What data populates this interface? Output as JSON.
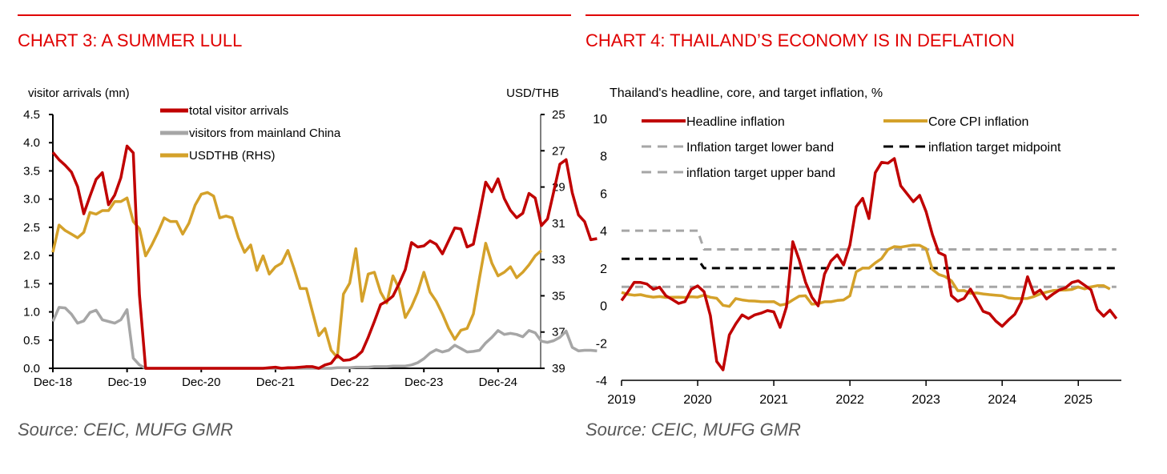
{
  "chart_data": [
    {
      "id": "chart3",
      "type": "line",
      "title": "CHART 3: A SUMMER LULL",
      "source": "Source: CEIC, MUFG GMR",
      "ylabel": "visitor arrivals (mn)",
      "y2label": "USD/THB",
      "ylim": [
        0,
        4.5
      ],
      "y2lim": [
        25,
        39
      ],
      "y2_inverted": true,
      "yticks": [
        "0.0",
        "0.5",
        "1.0",
        "1.5",
        "2.0",
        "2.5",
        "3.0",
        "3.5",
        "4.0",
        "4.5"
      ],
      "y2ticks": [
        "25",
        "27",
        "29",
        "31",
        "33",
        "35",
        "37",
        "39"
      ],
      "xticks": [
        "Dec-18",
        "Dec-19",
        "Dec-20",
        "Dec-21",
        "Dec-22",
        "Dec-23",
        "Dec-24"
      ],
      "x_start": "Dec-18",
      "x_unit": "month",
      "legend": [
        {
          "name": "total visitor arrivals",
          "color": "#c00000",
          "style": "solid"
        },
        {
          "name": "visitors from mainland China",
          "color": "#a6a6a6",
          "style": "solid"
        },
        {
          "name": "USDTHB (RHS)",
          "color": "#d4a12a",
          "style": "solid"
        }
      ],
      "series": [
        {
          "name": "total visitor arrivals",
          "axis": "left",
          "color": "#c00000",
          "values": [
            3.83,
            3.7,
            3.6,
            3.48,
            3.22,
            2.74,
            3.05,
            3.35,
            3.47,
            2.9,
            3.07,
            3.38,
            3.94,
            3.82,
            1.3,
            0.0,
            0.0,
            0.0,
            0.0,
            0.0,
            0.0,
            0.0,
            0.0,
            0.0,
            0.0,
            0.0,
            0.0,
            0.0,
            0.0,
            0.0,
            0.0,
            0.0,
            0.0,
            0.0,
            0.0,
            0.01,
            0.02,
            0.0,
            0.01,
            0.01,
            0.02,
            0.03,
            0.03,
            0.0,
            0.06,
            0.09,
            0.23,
            0.14,
            0.15,
            0.2,
            0.3,
            0.55,
            0.83,
            1.13,
            1.19,
            1.28,
            1.5,
            1.75,
            2.23,
            2.15,
            2.17,
            2.26,
            2.2,
            2.03,
            2.26,
            2.49,
            2.47,
            2.15,
            2.2,
            2.74,
            3.3,
            3.13,
            3.36,
            3.01,
            2.8,
            2.67,
            2.75,
            3.1,
            3.02,
            2.53,
            2.65,
            3.13,
            3.62,
            3.7,
            3.11,
            2.72,
            2.6,
            2.28,
            2.3
          ]
        },
        {
          "name": "visitors from mainland China",
          "axis": "left",
          "color": "#a6a6a6",
          "values": [
            0.83,
            1.08,
            1.07,
            0.96,
            0.8,
            0.84,
            0.99,
            1.03,
            0.86,
            0.83,
            0.8,
            0.86,
            1.04,
            0.18,
            0.06,
            0.0,
            0.0,
            0.0,
            0.0,
            0.0,
            0.0,
            0.0,
            0.0,
            0.0,
            0.0,
            0.0,
            0.0,
            0.0,
            0.0,
            0.0,
            0.0,
            0.0,
            0.0,
            0.0,
            0.0,
            0.0,
            0.0,
            0.0,
            0.0,
            0.0,
            0.0,
            0.0,
            0.0,
            0.0,
            0.0,
            0.0,
            0.01,
            0.01,
            0.01,
            0.02,
            0.02,
            0.02,
            0.03,
            0.03,
            0.03,
            0.04,
            0.04,
            0.04,
            0.06,
            0.1,
            0.17,
            0.27,
            0.33,
            0.29,
            0.32,
            0.41,
            0.35,
            0.29,
            0.3,
            0.32,
            0.45,
            0.55,
            0.67,
            0.6,
            0.62,
            0.6,
            0.56,
            0.67,
            0.63,
            0.48,
            0.46,
            0.49,
            0.55,
            0.66,
            0.37,
            0.31,
            0.32,
            0.32,
            0.31
          ]
        },
        {
          "name": "USDTHB (RHS)",
          "axis": "right",
          "color": "#d4a12a",
          "values": [
            32.6,
            31.1,
            31.4,
            31.6,
            31.8,
            31.5,
            30.4,
            30.5,
            30.3,
            30.3,
            29.8,
            29.8,
            29.6,
            30.9,
            31.3,
            32.8,
            32.2,
            31.5,
            30.7,
            30.9,
            30.9,
            31.6,
            31.0,
            30.0,
            29.4,
            29.3,
            29.5,
            30.7,
            30.6,
            30.7,
            31.8,
            32.6,
            32.2,
            33.6,
            32.8,
            33.8,
            33.4,
            33.2,
            32.5,
            33.5,
            34.6,
            34.6,
            35.9,
            37.2,
            36.8,
            38.0,
            38.4,
            34.9,
            34.3,
            32.4,
            35.3,
            33.8,
            33.7,
            34.8,
            35.4,
            33.9,
            34.6,
            36.2,
            35.6,
            34.8,
            33.7,
            34.8,
            35.3,
            36.0,
            36.8,
            37.4,
            36.9,
            36.8,
            36.0,
            34.0,
            32.1,
            33.2,
            33.9,
            33.7,
            33.4,
            34.0,
            33.7,
            33.3,
            32.8,
            32.5
          ]
        }
      ]
    },
    {
      "id": "chart4",
      "type": "line",
      "title": "CHART 4: THAILAND’S ECONOMY IS IN DEFLATION",
      "source": "Source: CEIC, MUFG GMR",
      "ylabel": "Thailand's headline, core, and target inflation, %",
      "ylim": [
        -4,
        10
      ],
      "yticks": [
        "10",
        "8",
        "6",
        "4",
        "2",
        "0",
        "-2",
        "-4"
      ],
      "xticks": [
        "2019",
        "2020",
        "2021",
        "2022",
        "2023",
        "2024",
        "2025"
      ],
      "x_start": "Jan-2019",
      "x_unit": "month",
      "legend": [
        {
          "name": "Headline inflation",
          "color": "#c00000",
          "style": "solid"
        },
        {
          "name": "Core CPI inflation",
          "color": "#d4a12a",
          "style": "solid"
        },
        {
          "name": "Inflation target lower band",
          "color": "#a6a6a6",
          "style": "dashed"
        },
        {
          "name": "inflation target midpoint",
          "color": "#000000",
          "style": "dashed"
        },
        {
          "name": "inflation target upper band",
          "color": "#a6a6a6",
          "style": "dashed"
        }
      ],
      "series": [
        {
          "name": "Headline inflation",
          "color": "#c00000",
          "style": "solid",
          "values": [
            0.27,
            0.73,
            1.24,
            1.23,
            1.15,
            0.87,
            0.98,
            0.52,
            0.32,
            0.11,
            0.21,
            0.87,
            1.05,
            0.74,
            -0.54,
            -2.99,
            -3.44,
            -1.57,
            -0.98,
            -0.5,
            -0.7,
            -0.5,
            -0.41,
            -0.27,
            -0.34,
            -1.17,
            -0.08,
            3.41,
            2.44,
            1.25,
            0.45,
            -0.02,
            1.68,
            2.38,
            2.71,
            2.17,
            3.23,
            5.28,
            5.73,
            4.65,
            7.1,
            7.66,
            7.61,
            7.86,
            6.41,
            5.98,
            5.55,
            5.89,
            5.02,
            3.79,
            2.83,
            2.67,
            0.53,
            0.23,
            0.38,
            0.88,
            0.3,
            -0.31,
            -0.44,
            -0.83,
            -1.11,
            -0.77,
            -0.47,
            0.19,
            1.54,
            0.62,
            0.83,
            0.35,
            0.61,
            0.83,
            0.95,
            1.23,
            1.32,
            1.08,
            0.84,
            -0.22,
            -0.57,
            -0.25,
            -0.7
          ]
        },
        {
          "name": "Core CPI inflation",
          "color": "#d4a12a",
          "style": "solid",
          "values": [
            0.7,
            0.6,
            0.55,
            0.58,
            0.5,
            0.45,
            0.48,
            0.43,
            0.44,
            0.45,
            0.43,
            0.47,
            0.45,
            0.55,
            0.44,
            0.39,
            0.01,
            -0.05,
            0.37,
            0.3,
            0.25,
            0.24,
            0.21,
            0.2,
            0.21,
            0.02,
            0.08,
            0.3,
            0.5,
            0.52,
            0.07,
            0.1,
            0.2,
            0.2,
            0.27,
            0.3,
            0.52,
            1.8,
            2.0,
            2.0,
            2.28,
            2.51,
            2.99,
            3.15,
            3.12,
            3.18,
            3.23,
            3.22,
            3.04,
            1.93,
            1.66,
            1.55,
            1.32,
            0.79,
            0.8,
            0.65,
            0.67,
            0.62,
            0.58,
            0.55,
            0.52,
            0.41,
            0.37,
            0.37,
            0.38,
            0.48,
            0.62,
            0.72,
            0.8,
            0.82,
            0.83,
            0.86,
            0.99,
            0.89,
            0.99,
            1.06,
            1.06,
            0.88
          ]
        },
        {
          "name": "Inflation target lower band",
          "color": "#a6a6a6",
          "style": "dashed",
          "values": [
            1.0,
            1.0,
            1.0,
            1.0,
            1.0,
            1.0,
            1.0,
            1.0,
            1.0,
            1.0,
            1.0,
            1.0,
            1.0,
            1.0,
            1.0,
            1.0,
            1.0,
            1.0,
            1.0,
            1.0,
            1.0,
            1.0,
            1.0,
            1.0,
            1.0,
            1.0,
            1.0,
            1.0,
            1.0,
            1.0,
            1.0,
            1.0,
            1.0,
            1.0,
            1.0,
            1.0,
            1.0,
            1.0,
            1.0,
            1.0,
            1.0,
            1.0,
            1.0,
            1.0,
            1.0,
            1.0,
            1.0,
            1.0,
            1.0,
            1.0,
            1.0,
            1.0,
            1.0,
            1.0,
            1.0,
            1.0,
            1.0,
            1.0,
            1.0,
            1.0,
            1.0,
            1.0,
            1.0,
            1.0,
            1.0,
            1.0,
            1.0,
            1.0,
            1.0,
            1.0,
            1.0,
            1.0,
            1.0,
            1.0,
            1.0,
            1.0,
            1.0,
            1.0,
            1.0
          ]
        },
        {
          "name": "inflation target midpoint",
          "color": "#000000",
          "style": "dashed",
          "values": [
            2.5,
            2.5,
            2.5,
            2.5,
            2.5,
            2.5,
            2.5,
            2.5,
            2.5,
            2.5,
            2.5,
            2.5,
            2.5,
            2.0,
            2.0,
            2.0,
            2.0,
            2.0,
            2.0,
            2.0,
            2.0,
            2.0,
            2.0,
            2.0,
            2.0,
            2.0,
            2.0,
            2.0,
            2.0,
            2.0,
            2.0,
            2.0,
            2.0,
            2.0,
            2.0,
            2.0,
            2.0,
            2.0,
            2.0,
            2.0,
            2.0,
            2.0,
            2.0,
            2.0,
            2.0,
            2.0,
            2.0,
            2.0,
            2.0,
            2.0,
            2.0,
            2.0,
            2.0,
            2.0,
            2.0,
            2.0,
            2.0,
            2.0,
            2.0,
            2.0,
            2.0,
            2.0,
            2.0,
            2.0,
            2.0,
            2.0,
            2.0,
            2.0,
            2.0,
            2.0,
            2.0,
            2.0,
            2.0,
            2.0,
            2.0,
            2.0,
            2.0,
            2.0,
            2.0
          ]
        },
        {
          "name": "inflation target upper band",
          "color": "#a6a6a6",
          "style": "dashed",
          "values": [
            4.0,
            4.0,
            4.0,
            4.0,
            4.0,
            4.0,
            4.0,
            4.0,
            4.0,
            4.0,
            4.0,
            4.0,
            4.0,
            3.0,
            3.0,
            3.0,
            3.0,
            3.0,
            3.0,
            3.0,
            3.0,
            3.0,
            3.0,
            3.0,
            3.0,
            3.0,
            3.0,
            3.0,
            3.0,
            3.0,
            3.0,
            3.0,
            3.0,
            3.0,
            3.0,
            3.0,
            3.0,
            3.0,
            3.0,
            3.0,
            3.0,
            3.0,
            3.0,
            3.0,
            3.0,
            3.0,
            3.0,
            3.0,
            3.0,
            3.0,
            3.0,
            3.0,
            3.0,
            3.0,
            3.0,
            3.0,
            3.0,
            3.0,
            3.0,
            3.0,
            3.0,
            3.0,
            3.0,
            3.0,
            3.0,
            3.0,
            3.0,
            3.0,
            3.0,
            3.0,
            3.0,
            3.0,
            3.0,
            3.0,
            3.0,
            3.0,
            3.0,
            3.0,
            3.0
          ]
        }
      ]
    }
  ]
}
